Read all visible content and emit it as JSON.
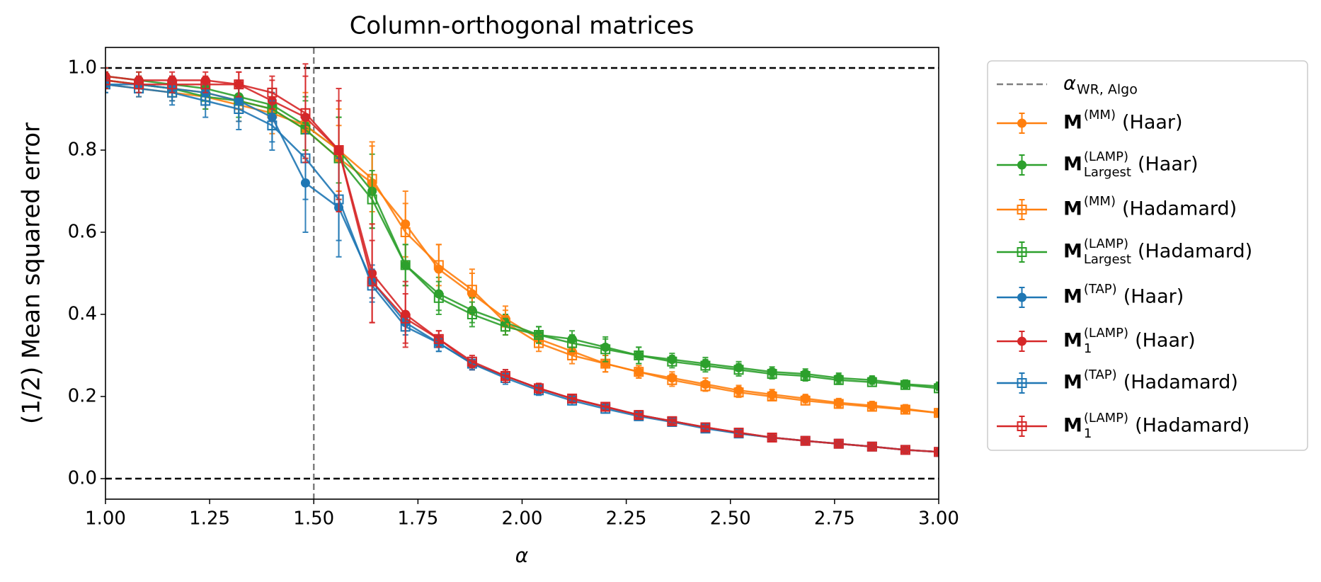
{
  "chart_data": {
    "type": "errorbar-line",
    "title": "Column-orthogonal matrices",
    "x_label": "α",
    "y_label": "(1/2) Mean squared error",
    "xlim": [
      1,
      3
    ],
    "ylim": [
      -0.05,
      1.05
    ],
    "xticks": [
      {
        "value": 1,
        "label": "1.00"
      },
      1.25,
      {
        "value": 1.5,
        "label": "1.50"
      },
      1.75,
      {
        "value": 2,
        "label": "2.00"
      },
      2.25,
      {
        "value": 2.5,
        "label": "2.50"
      },
      2.75,
      {
        "value": 3,
        "label": "3.00"
      }
    ],
    "yticks": [
      {
        "value": 0,
        "label": "0.0"
      },
      0.2,
      0.4,
      0.6,
      0.8,
      {
        "value": 1,
        "label": "1.0"
      }
    ],
    "hlines": [
      0,
      1
    ],
    "hline_color": "#000000",
    "vline": {
      "x": 1.5,
      "color": "#7f7f7f",
      "label": "α",
      "label_subscript": "WR, Algo"
    },
    "legend": "outside-right",
    "x": [
      1.0,
      1.08,
      1.16,
      1.24,
      1.32,
      1.4,
      1.48,
      1.56,
      1.64,
      1.72,
      1.8,
      1.88,
      1.96,
      2.04,
      2.12,
      2.2,
      2.28,
      2.36,
      2.44,
      2.52,
      2.6,
      2.68,
      2.76,
      2.84,
      2.92,
      3.0
    ],
    "series": [
      {
        "symbol": "M",
        "superscript": "(MM)",
        "name": "(Haar)",
        "color": "#ff7f0e",
        "marker": "circle",
        "values": [
          0.97,
          0.96,
          0.95,
          0.94,
          0.92,
          0.9,
          0.85,
          0.78,
          0.72,
          0.62,
          0.51,
          0.45,
          0.39,
          0.34,
          0.31,
          0.28,
          0.26,
          0.245,
          0.23,
          0.215,
          0.205,
          0.195,
          0.185,
          0.178,
          0.17,
          0.16
        ],
        "errors": [
          0.02,
          0.02,
          0.02,
          0.02,
          0.03,
          0.03,
          0.05,
          0.08,
          0.1,
          0.08,
          0.06,
          0.05,
          0.03,
          0.02,
          0.02,
          0.02,
          0.015,
          0.015,
          0.015,
          0.012,
          0.012,
          0.01,
          0.01,
          0.01,
          0.01,
          0.01
        ]
      },
      {
        "symbol": "M",
        "superscript": "(LAMP)",
        "subscript": "Largest",
        "name": "(Haar)",
        "color": "#2ca02c",
        "marker": "circle",
        "values": [
          0.98,
          0.97,
          0.96,
          0.95,
          0.93,
          0.91,
          0.86,
          0.8,
          0.7,
          0.52,
          0.45,
          0.41,
          0.38,
          0.35,
          0.34,
          0.32,
          0.3,
          0.29,
          0.28,
          0.27,
          0.26,
          0.255,
          0.245,
          0.24,
          0.23,
          0.225
        ],
        "errors": [
          0.02,
          0.02,
          0.02,
          0.02,
          0.03,
          0.04,
          0.06,
          0.08,
          0.09,
          0.05,
          0.04,
          0.03,
          0.02,
          0.02,
          0.02,
          0.02,
          0.02,
          0.015,
          0.015,
          0.015,
          0.012,
          0.012,
          0.012,
          0.01,
          0.01,
          0.01
        ]
      },
      {
        "symbol": "M",
        "superscript": "(MM)",
        "name": "(Hadamard)",
        "color": "#ff7f0e",
        "marker": "square-open",
        "values": [
          0.96,
          0.95,
          0.94,
          0.93,
          0.91,
          0.89,
          0.86,
          0.8,
          0.73,
          0.6,
          0.52,
          0.46,
          0.38,
          0.33,
          0.3,
          0.28,
          0.26,
          0.24,
          0.225,
          0.21,
          0.2,
          0.19,
          0.182,
          0.175,
          0.168,
          0.16
        ],
        "errors": [
          0.02,
          0.02,
          0.02,
          0.03,
          0.04,
          0.05,
          0.08,
          0.1,
          0.08,
          0.07,
          0.05,
          0.05,
          0.03,
          0.02,
          0.02,
          0.02,
          0.015,
          0.015,
          0.012,
          0.012,
          0.01,
          0.01,
          0.01,
          0.01,
          0.01,
          0.01
        ]
      },
      {
        "symbol": "M",
        "superscript": "(LAMP)",
        "subscript": "Largest",
        "name": "(Hadamard)",
        "color": "#2ca02c",
        "marker": "square-open",
        "values": [
          0.97,
          0.96,
          0.95,
          0.93,
          0.92,
          0.9,
          0.85,
          0.78,
          0.68,
          0.52,
          0.44,
          0.4,
          0.37,
          0.35,
          0.33,
          0.315,
          0.3,
          0.285,
          0.275,
          0.265,
          0.255,
          0.25,
          0.24,
          0.235,
          0.228,
          0.22
        ],
        "errors": [
          0.02,
          0.02,
          0.02,
          0.03,
          0.04,
          0.05,
          0.08,
          0.1,
          0.07,
          0.05,
          0.04,
          0.03,
          0.02,
          0.02,
          0.02,
          0.03,
          0.02,
          0.015,
          0.015,
          0.015,
          0.012,
          0.012,
          0.01,
          0.01,
          0.01,
          0.01
        ]
      },
      {
        "symbol": "M",
        "superscript": "(TAP)",
        "name": "(Haar)",
        "color": "#1f77b4",
        "marker": "circle",
        "values": [
          0.96,
          0.96,
          0.95,
          0.94,
          0.92,
          0.88,
          0.72,
          0.66,
          0.48,
          0.38,
          0.33,
          0.28,
          0.25,
          0.22,
          0.195,
          0.175,
          0.155,
          0.14,
          0.125,
          0.11,
          0.1,
          0.092,
          0.085,
          0.078,
          0.07,
          0.065
        ],
        "errors": [
          0.02,
          0.02,
          0.03,
          0.03,
          0.05,
          0.06,
          0.12,
          0.12,
          0.04,
          0.02,
          0.02,
          0.015,
          0.015,
          0.012,
          0.01,
          0.01,
          0.01,
          0.01,
          0.01,
          0.01,
          0.01,
          0.01,
          0.01,
          0.01,
          0.01,
          0.01
        ]
      },
      {
        "symbol": "M",
        "superscript": "(LAMP)",
        "subscript": "1",
        "name": "(Haar)",
        "color": "#d62728",
        "marker": "circle",
        "values": [
          0.98,
          0.97,
          0.97,
          0.97,
          0.96,
          0.92,
          0.88,
          0.8,
          0.5,
          0.4,
          0.34,
          0.28,
          0.25,
          0.22,
          0.195,
          0.175,
          0.155,
          0.14,
          0.125,
          0.112,
          0.1,
          0.092,
          0.085,
          0.078,
          0.07,
          0.065
        ],
        "errors": [
          0.02,
          0.02,
          0.02,
          0.02,
          0.03,
          0.05,
          0.1,
          0.12,
          0.12,
          0.08,
          0.02,
          0.015,
          0.015,
          0.012,
          0.01,
          0.01,
          0.01,
          0.01,
          0.01,
          0.01,
          0.01,
          0.01,
          0.01,
          0.01,
          0.01,
          0.01
        ]
      },
      {
        "symbol": "M",
        "superscript": "(TAP)",
        "name": "(Hadamard)",
        "color": "#1f77b4",
        "marker": "square-open",
        "values": [
          0.96,
          0.95,
          0.94,
          0.92,
          0.9,
          0.86,
          0.78,
          0.68,
          0.47,
          0.37,
          0.33,
          0.28,
          0.245,
          0.215,
          0.19,
          0.17,
          0.152,
          0.138,
          0.122,
          0.11,
          0.1,
          0.092,
          0.085,
          0.078,
          0.07,
          0.065
        ],
        "errors": [
          0.02,
          0.02,
          0.03,
          0.04,
          0.05,
          0.06,
          0.1,
          0.1,
          0.04,
          0.02,
          0.02,
          0.015,
          0.015,
          0.012,
          0.01,
          0.01,
          0.01,
          0.01,
          0.01,
          0.01,
          0.01,
          0.01,
          0.01,
          0.01,
          0.01,
          0.01
        ]
      },
      {
        "symbol": "M",
        "superscript": "(LAMP)",
        "subscript": "1",
        "name": "(Hadamard)",
        "color": "#d62728",
        "marker": "square-open",
        "values": [
          0.97,
          0.96,
          0.96,
          0.96,
          0.96,
          0.94,
          0.89,
          0.8,
          0.48,
          0.39,
          0.34,
          0.285,
          0.25,
          0.22,
          0.195,
          0.175,
          0.155,
          0.14,
          0.125,
          0.112,
          0.1,
          0.092,
          0.085,
          0.078,
          0.07,
          0.065
        ],
        "errors": [
          0.02,
          0.02,
          0.02,
          0.02,
          0.03,
          0.04,
          0.12,
          0.15,
          0.1,
          0.06,
          0.02,
          0.015,
          0.015,
          0.012,
          0.01,
          0.01,
          0.01,
          0.01,
          0.01,
          0.01,
          0.01,
          0.01,
          0.01,
          0.01,
          0.01,
          0.01
        ]
      }
    ]
  }
}
